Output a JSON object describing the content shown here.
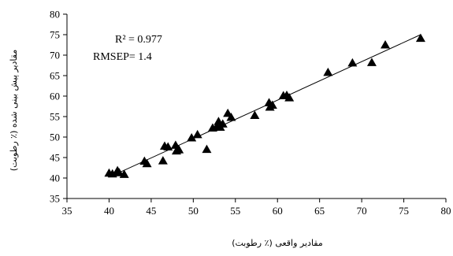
{
  "chart_data": {
    "type": "scatter",
    "xlabel": "مقادیر واقعی (٪ رطوبت)",
    "ylabel": "مقادیر پیش بینی شده (٪ رطوبت)",
    "xlim": [
      35,
      80
    ],
    "ylim": [
      35,
      80
    ],
    "x_ticks": [
      "35",
      "40",
      "45",
      "50",
      "55",
      "60",
      "65",
      "70",
      "75",
      "80"
    ],
    "y_ticks": [
      "35",
      "40",
      "45",
      "50",
      "55",
      "60",
      "65",
      "70",
      "75",
      "80"
    ],
    "grid": false,
    "marker": "triangle",
    "annotations": [
      "R² = 0.977",
      "RMSEP= 1.4"
    ],
    "trendline": {
      "x": [
        40,
        77
      ],
      "y": [
        40.2,
        75
      ]
    },
    "series": [
      {
        "x": [
          40.0,
          40.4,
          41.0,
          41.2,
          41.8,
          44.2,
          44.5,
          46.4,
          46.6,
          47.0,
          47.9,
          48.0,
          48.3,
          49.8,
          50.5,
          51.6,
          52.3,
          52.8,
          53.0,
          53.2,
          53.5,
          54.1,
          54.5,
          57.3,
          59.0,
          59.1,
          59.4,
          60.7,
          61.1,
          61.4,
          66.0,
          68.9,
          71.2,
          72.8,
          77.0
        ],
        "y": [
          41.2,
          41.0,
          41.8,
          41.3,
          40.9,
          44.1,
          43.5,
          44.2,
          47.8,
          47.6,
          48.0,
          46.6,
          46.9,
          49.8,
          50.6,
          47.0,
          52.2,
          52.6,
          53.8,
          52.4,
          53.2,
          55.8,
          54.8,
          55.3,
          58.4,
          57.3,
          57.8,
          60.1,
          60.2,
          59.6,
          65.8,
          68.1,
          68.2,
          72.5,
          74.1
        ]
      }
    ]
  }
}
